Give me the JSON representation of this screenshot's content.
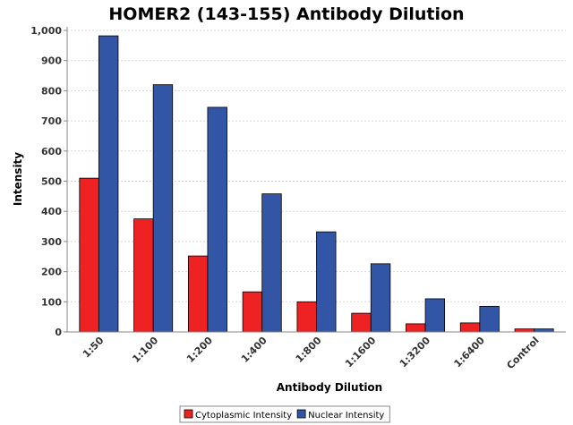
{
  "chart_data": {
    "type": "bar",
    "title": "HOMER2 (143-155) Antibody Dilution",
    "xlabel": "Antibody Dilution",
    "ylabel": "Intensity",
    "ylim": [
      0,
      1000
    ],
    "yticks": [
      0,
      100,
      200,
      300,
      400,
      500,
      600,
      700,
      800,
      900,
      1000
    ],
    "ytick_labels": [
      "0",
      "100",
      "200",
      "300",
      "400",
      "500",
      "600",
      "700",
      "800",
      "900",
      "1,000"
    ],
    "grid": true,
    "legend_position": "bottom",
    "categories": [
      "1:50",
      "1:100",
      "1:200",
      "1:400",
      "1:800",
      "1:1600",
      "1:3200",
      "1:6400",
      "Control"
    ],
    "series": [
      {
        "name": "Cytoplasmic Intensity",
        "color": "#ee2222",
        "values": [
          510,
          375,
          252,
          133,
          100,
          62,
          27,
          30,
          10
        ]
      },
      {
        "name": "Nuclear Intensity",
        "color": "#3355a5",
        "values": [
          982,
          820,
          745,
          458,
          332,
          226,
          110,
          85,
          10
        ]
      }
    ]
  }
}
